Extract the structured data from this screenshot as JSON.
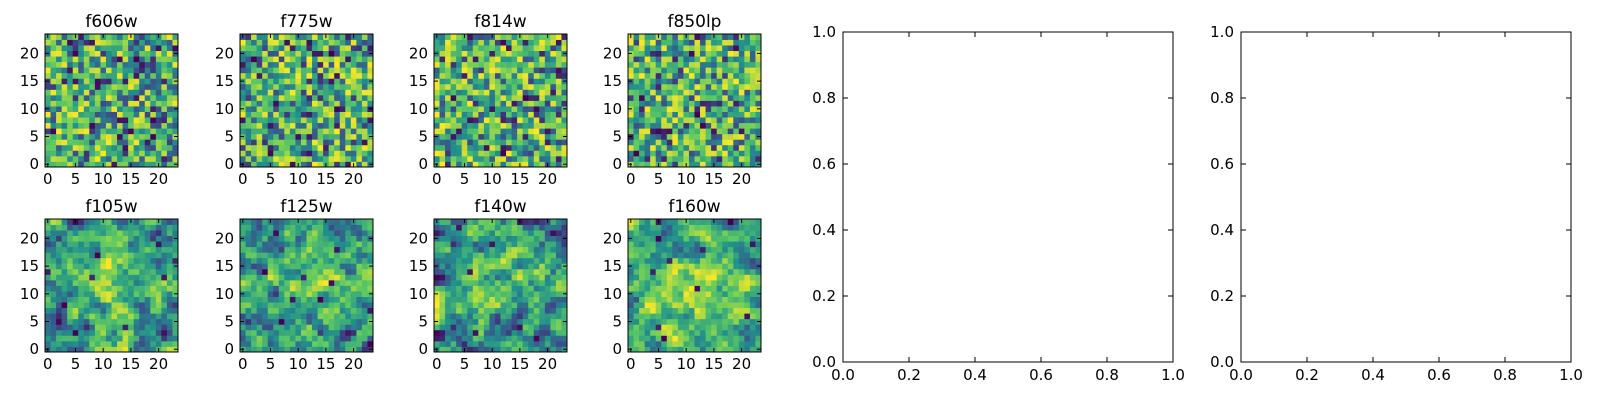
{
  "chart_data": {
    "type": "heatmap",
    "colormap": [
      "#440154",
      "#3b528b",
      "#21918c",
      "#5ec962",
      "#fde725"
    ],
    "images": [
      {
        "title": "f606w",
        "width": 24,
        "height": 24,
        "xticks": [
          "0",
          "5",
          "10",
          "15",
          "20"
        ],
        "yticks": [
          "0",
          "5",
          "10",
          "15",
          "20"
        ],
        "xlim": [
          -0.5,
          23.5
        ],
        "ylim": [
          -0.5,
          23.5
        ],
        "texture": "noise",
        "seed": 11
      },
      {
        "title": "f775w",
        "width": 24,
        "height": 24,
        "xticks": [
          "0",
          "5",
          "10",
          "15",
          "20"
        ],
        "yticks": [
          "0",
          "5",
          "10",
          "15",
          "20"
        ],
        "xlim": [
          -0.5,
          23.5
        ],
        "ylim": [
          -0.5,
          23.5
        ],
        "texture": "noise",
        "seed": 23
      },
      {
        "title": "f814w",
        "width": 24,
        "height": 24,
        "xticks": [
          "0",
          "5",
          "10",
          "15",
          "20"
        ],
        "yticks": [
          "0",
          "5",
          "10",
          "15",
          "20"
        ],
        "xlim": [
          -0.5,
          23.5
        ],
        "ylim": [
          -0.5,
          23.5
        ],
        "texture": "noise",
        "seed": 37
      },
      {
        "title": "f850lp",
        "width": 24,
        "height": 24,
        "xticks": [
          "0",
          "5",
          "10",
          "15",
          "20"
        ],
        "yticks": [
          "0",
          "5",
          "10",
          "15",
          "20"
        ],
        "xlim": [
          -0.5,
          23.5
        ],
        "ylim": [
          -0.5,
          23.5
        ],
        "texture": "noise",
        "seed": 41
      },
      {
        "title": "f105w",
        "width": 24,
        "height": 24,
        "xticks": [
          "0",
          "5",
          "10",
          "15",
          "20"
        ],
        "yticks": [
          "0",
          "5",
          "10",
          "15",
          "20"
        ],
        "xlim": [
          -0.5,
          23.5
        ],
        "ylim": [
          -0.5,
          23.5
        ],
        "texture": "smooth",
        "seed": 53
      },
      {
        "title": "f125w",
        "width": 24,
        "height": 24,
        "xticks": [
          "0",
          "5",
          "10",
          "15",
          "20"
        ],
        "yticks": [
          "0",
          "5",
          "10",
          "15",
          "20"
        ],
        "xlim": [
          -0.5,
          23.5
        ],
        "ylim": [
          -0.5,
          23.5
        ],
        "texture": "smooth",
        "seed": 67
      },
      {
        "title": "f140w",
        "width": 24,
        "height": 24,
        "xticks": [
          "0",
          "5",
          "10",
          "15",
          "20"
        ],
        "yticks": [
          "0",
          "5",
          "10",
          "15",
          "20"
        ],
        "xlim": [
          -0.5,
          23.5
        ],
        "ylim": [
          -0.5,
          23.5
        ],
        "texture": "smooth",
        "seed": 79
      },
      {
        "title": "f160w",
        "width": 24,
        "height": 24,
        "xticks": [
          "0",
          "5",
          "10",
          "15",
          "20"
        ],
        "yticks": [
          "0",
          "5",
          "10",
          "15",
          "20"
        ],
        "xlim": [
          -0.5,
          23.5
        ],
        "ylim": [
          -0.5,
          23.5
        ],
        "texture": "smooth",
        "seed": 97
      }
    ],
    "empty_axes": [
      {
        "xlim": [
          0.0,
          1.0
        ],
        "ylim": [
          0.0,
          1.0
        ],
        "xticks": [
          "0.0",
          "0.2",
          "0.4",
          "0.6",
          "0.8",
          "1.0"
        ],
        "yticks": [
          "0.0",
          "0.2",
          "0.4",
          "0.6",
          "0.8",
          "1.0"
        ]
      },
      {
        "xlim": [
          0.0,
          1.0
        ],
        "ylim": [
          0.0,
          1.0
        ],
        "xticks": [
          "0.0",
          "0.2",
          "0.4",
          "0.6",
          "0.8",
          "1.0"
        ],
        "yticks": [
          "0.0",
          "0.2",
          "0.4",
          "0.6",
          "0.8",
          "1.0"
        ]
      }
    ]
  }
}
